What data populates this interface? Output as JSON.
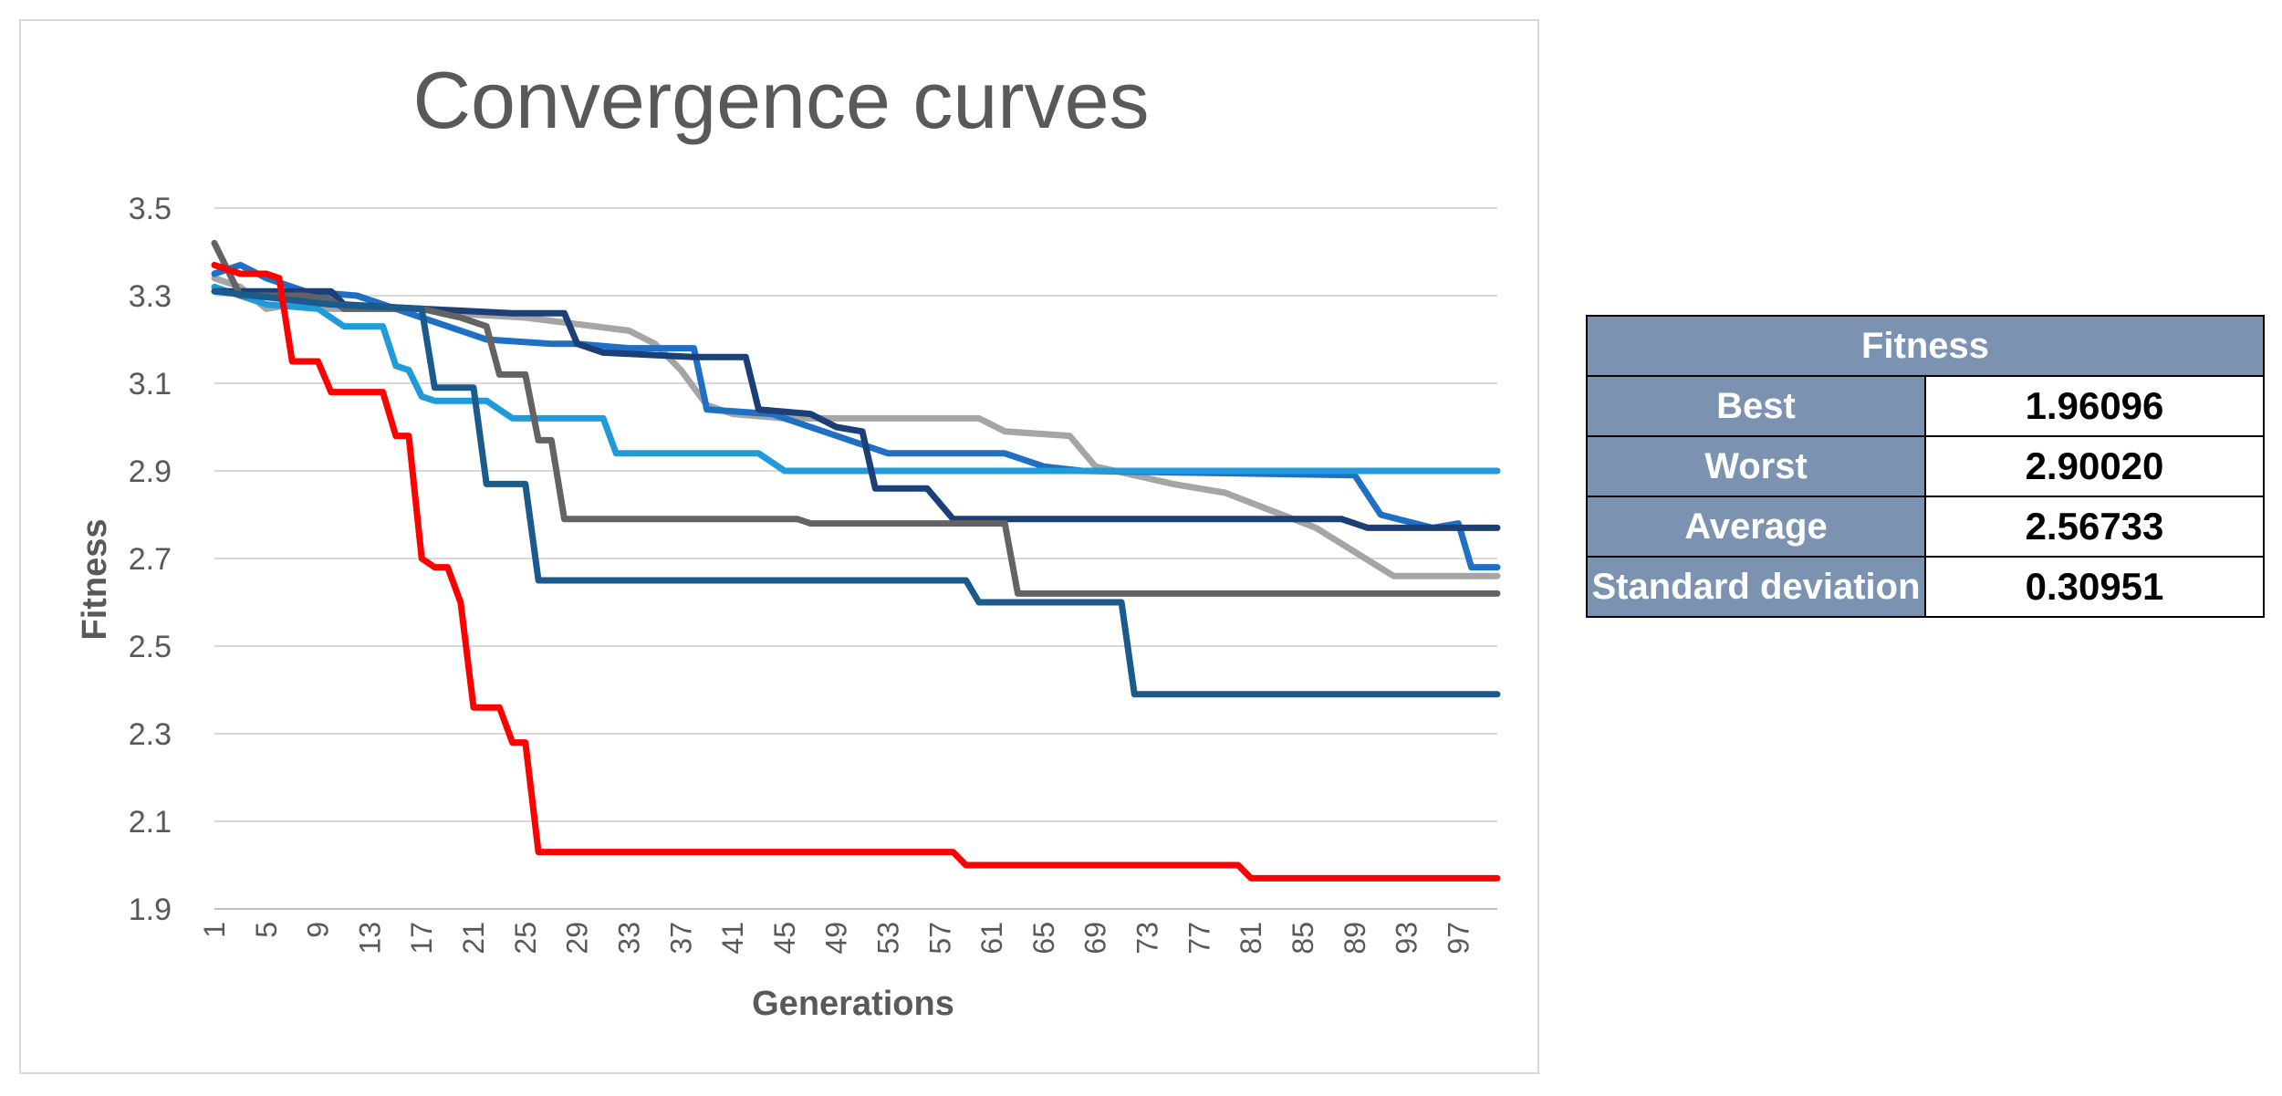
{
  "chart_data": {
    "type": "line",
    "title": "Convergence curves",
    "xlabel": "Generations",
    "ylabel": "Fitness",
    "ylim": [
      1.9,
      3.5
    ],
    "yticks": [
      "1.9",
      "2.1",
      "2.3",
      "2.5",
      "2.7",
      "2.9",
      "3.1",
      "3.3",
      "3.5"
    ],
    "xlim": [
      1,
      100
    ],
    "xticks": [
      "1",
      "5",
      "9",
      "13",
      "17",
      "21",
      "25",
      "29",
      "33",
      "37",
      "41",
      "45",
      "49",
      "53",
      "57",
      "61",
      "65",
      "69",
      "73",
      "77",
      "81",
      "85",
      "89",
      "93",
      "97"
    ],
    "grid": true,
    "legend": "none",
    "series": [
      {
        "color": "#a5a5a5",
        "points": [
          [
            1,
            3.34
          ],
          [
            3,
            3.32
          ],
          [
            5,
            3.27
          ],
          [
            7,
            3.28
          ],
          [
            10,
            3.27
          ],
          [
            17,
            3.27
          ],
          [
            19,
            3.26
          ],
          [
            25,
            3.25
          ],
          [
            33,
            3.22
          ],
          [
            35,
            3.19
          ],
          [
            37,
            3.13
          ],
          [
            39,
            3.05
          ],
          [
            41,
            3.03
          ],
          [
            45,
            3.02
          ],
          [
            60,
            3.02
          ],
          [
            62,
            2.99
          ],
          [
            67,
            2.98
          ],
          [
            69,
            2.91
          ],
          [
            75,
            2.87
          ],
          [
            79,
            2.85
          ],
          [
            86,
            2.77
          ],
          [
            92,
            2.66
          ],
          [
            100,
            2.66
          ]
        ]
      },
      {
        "color": "#1f6fc5",
        "points": [
          [
            1,
            3.35
          ],
          [
            3,
            3.37
          ],
          [
            5,
            3.34
          ],
          [
            8,
            3.31
          ],
          [
            12,
            3.3
          ],
          [
            22,
            3.2
          ],
          [
            27,
            3.19
          ],
          [
            29,
            3.19
          ],
          [
            33,
            3.18
          ],
          [
            38,
            3.18
          ],
          [
            39,
            3.04
          ],
          [
            44,
            3.03
          ],
          [
            53,
            2.94
          ],
          [
            62,
            2.94
          ],
          [
            65,
            2.91
          ],
          [
            68,
            2.9
          ],
          [
            89,
            2.89
          ],
          [
            91,
            2.8
          ],
          [
            95,
            2.77
          ],
          [
            97,
            2.78
          ],
          [
            98,
            2.68
          ],
          [
            100,
            2.68
          ]
        ]
      },
      {
        "color": "#1f9bdc",
        "points": [
          [
            1,
            3.32
          ],
          [
            5,
            3.28
          ],
          [
            9,
            3.27
          ],
          [
            11,
            3.23
          ],
          [
            14,
            3.23
          ],
          [
            15,
            3.14
          ],
          [
            16,
            3.13
          ],
          [
            17,
            3.07
          ],
          [
            18,
            3.06
          ],
          [
            22,
            3.06
          ],
          [
            24,
            3.02
          ],
          [
            28,
            3.02
          ],
          [
            31,
            3.02
          ],
          [
            32,
            2.94
          ],
          [
            43,
            2.94
          ],
          [
            45,
            2.9
          ],
          [
            100,
            2.9
          ]
        ]
      },
      {
        "color": "#1c3f78",
        "points": [
          [
            1,
            3.31
          ],
          [
            5,
            3.31
          ],
          [
            10,
            3.31
          ],
          [
            11,
            3.28
          ],
          [
            17,
            3.27
          ],
          [
            24,
            3.26
          ],
          [
            28,
            3.26
          ],
          [
            29,
            3.19
          ],
          [
            31,
            3.17
          ],
          [
            38,
            3.16
          ],
          [
            42,
            3.16
          ],
          [
            43,
            3.04
          ],
          [
            47,
            3.03
          ],
          [
            49,
            3.0
          ],
          [
            51,
            2.99
          ],
          [
            52,
            2.86
          ],
          [
            56,
            2.86
          ],
          [
            58,
            2.79
          ],
          [
            88,
            2.79
          ],
          [
            90,
            2.77
          ],
          [
            100,
            2.77
          ]
        ]
      },
      {
        "color": "#636363",
        "points": [
          [
            1,
            3.42
          ],
          [
            3,
            3.3
          ],
          [
            8,
            3.3
          ],
          [
            10,
            3.29
          ],
          [
            11,
            3.27
          ],
          [
            17,
            3.27
          ],
          [
            20,
            3.25
          ],
          [
            21,
            3.24
          ],
          [
            22,
            3.23
          ],
          [
            23,
            3.12
          ],
          [
            25,
            3.12
          ],
          [
            26,
            2.97
          ],
          [
            27,
            2.97
          ],
          [
            28,
            2.79
          ],
          [
            46,
            2.79
          ],
          [
            47,
            2.78
          ],
          [
            50,
            2.78
          ],
          [
            62,
            2.78
          ],
          [
            63,
            2.62
          ],
          [
            100,
            2.62
          ]
        ]
      },
      {
        "color": "#1a5a8c",
        "points": [
          [
            1,
            3.31
          ],
          [
            10,
            3.28
          ],
          [
            17,
            3.27
          ],
          [
            18,
            3.09
          ],
          [
            21,
            3.09
          ],
          [
            22,
            2.87
          ],
          [
            25,
            2.87
          ],
          [
            26,
            2.65
          ],
          [
            59,
            2.65
          ],
          [
            60,
            2.6
          ],
          [
            71,
            2.6
          ],
          [
            72,
            2.39
          ],
          [
            100,
            2.39
          ]
        ]
      },
      {
        "color": "#ff0000",
        "points": [
          [
            1,
            3.37
          ],
          [
            3,
            3.35
          ],
          [
            5,
            3.35
          ],
          [
            6,
            3.34
          ],
          [
            7,
            3.15
          ],
          [
            9,
            3.15
          ],
          [
            10,
            3.08
          ],
          [
            14,
            3.08
          ],
          [
            15,
            2.98
          ],
          [
            16,
            2.98
          ],
          [
            17,
            2.7
          ],
          [
            18,
            2.68
          ],
          [
            19,
            2.68
          ],
          [
            20,
            2.6
          ],
          [
            21,
            2.36
          ],
          [
            23,
            2.36
          ],
          [
            24,
            2.28
          ],
          [
            25,
            2.28
          ],
          [
            26,
            2.03
          ],
          [
            58,
            2.03
          ],
          [
            59,
            2.0
          ],
          [
            80,
            2.0
          ],
          [
            81,
            1.97
          ],
          [
            100,
            1.97
          ]
        ]
      }
    ]
  },
  "table": {
    "header": "Fitness",
    "rows": [
      {
        "label": "Best",
        "value": "1.96096"
      },
      {
        "label": "Worst",
        "value": "2.90020"
      },
      {
        "label": "Average",
        "value": "2.56733"
      },
      {
        "label": "Standard deviation",
        "value": "0.30951"
      }
    ]
  }
}
